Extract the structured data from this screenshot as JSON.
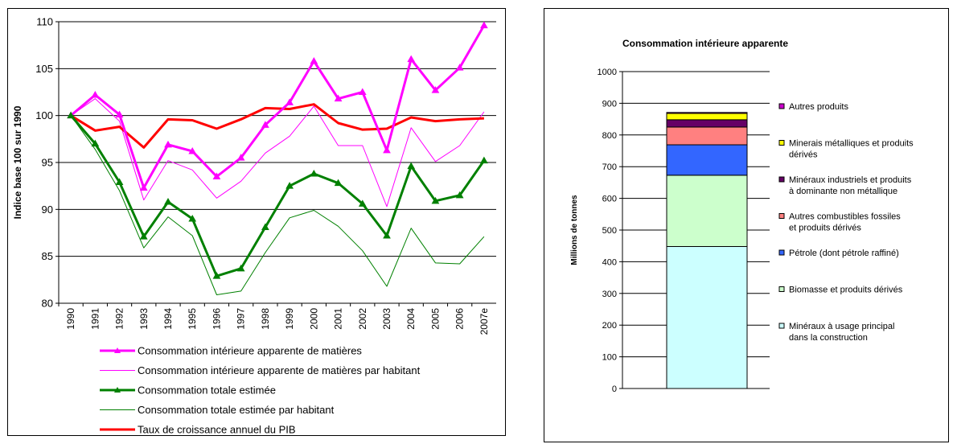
{
  "chart_data": [
    {
      "type": "line",
      "title": "",
      "xlabel": "",
      "ylabel": "Indice base 100 sur 1990",
      "ylim": [
        80,
        110
      ],
      "yticks": [
        80,
        85,
        90,
        95,
        100,
        105,
        110
      ],
      "grid": true,
      "legend_position": "bottom",
      "categories": [
        "1990",
        "1991",
        "1992",
        "1993",
        "1994",
        "1995",
        "1996",
        "1997",
        "1998",
        "1999",
        "2000",
        "2001",
        "2002",
        "2003",
        "2004",
        "2005",
        "2006",
        "2007e"
      ],
      "series": [
        {
          "name": "Consommation intérieure apparente de matières",
          "color": "#ff00ff",
          "marker": "triangle",
          "width": "thick",
          "values": [
            100,
            102.2,
            100.1,
            92.3,
            96.9,
            96.2,
            93.5,
            95.5,
            99.0,
            101.4,
            105.8,
            101.8,
            102.5,
            96.3,
            106.0,
            102.7,
            105.1,
            109.6
          ]
        },
        {
          "name": "Consommation intérieure apparente de matières par habitant",
          "color": "#ff00ff",
          "marker": "none",
          "width": "thin",
          "values": [
            100,
            101.8,
            99.4,
            91.0,
            95.2,
            94.2,
            91.2,
            93.0,
            96.0,
            97.8,
            101.0,
            96.8,
            96.8,
            90.3,
            98.7,
            95.1,
            96.8,
            100.4
          ]
        },
        {
          "name": "Consommation totale estimée",
          "color": "#008000",
          "marker": "triangle",
          "width": "thick",
          "values": [
            100,
            97.0,
            92.9,
            87.1,
            90.8,
            89.0,
            82.9,
            83.7,
            88.1,
            92.5,
            93.8,
            92.8,
            90.6,
            87.2,
            94.6,
            90.9,
            91.5,
            95.2
          ]
        },
        {
          "name": "Consommation totale estimée par habitant",
          "color": "#008000",
          "marker": "none",
          "width": "thin",
          "values": [
            100,
            96.4,
            92.0,
            85.9,
            89.2,
            87.2,
            80.9,
            81.3,
            85.4,
            89.1,
            89.9,
            88.2,
            85.6,
            81.8,
            88.0,
            84.3,
            84.2,
            87.1
          ]
        },
        {
          "name": "Taux de croissance annuel du PIB",
          "color": "#ff0000",
          "marker": "none",
          "width": "thick",
          "values": [
            100,
            98.4,
            98.8,
            96.6,
            99.6,
            99.5,
            98.6,
            99.6,
            100.8,
            100.7,
            101.2,
            99.2,
            98.5,
            98.6,
            99.8,
            99.4,
            99.6,
            99.7
          ]
        }
      ]
    },
    {
      "type": "bar",
      "stacked": true,
      "title": "Consommation intérieure apparente",
      "xlabel": "",
      "ylabel": "Millions de tonnes",
      "ylim": [
        0,
        1000
      ],
      "yticks": [
        0,
        100,
        200,
        300,
        400,
        500,
        600,
        700,
        800,
        900,
        1000
      ],
      "grid": true,
      "legend_position": "right",
      "series": [
        {
          "name": "Minéraux à usage principal dans la construction",
          "label_lines": [
            "Minéraux à usage principal",
            "dans la construction"
          ],
          "color": "#ccffff",
          "value": 448
        },
        {
          "name": "Biomasse et produits dérivés",
          "label_lines": [
            "Biomasse et produits dérivés"
          ],
          "color": "#ccffcc",
          "value": 225
        },
        {
          "name": "Pétrole (dont pétrole raffiné)",
          "label_lines": [
            "Pétrole (dont pétrole raffiné)"
          ],
          "color": "#3366ff",
          "value": 96
        },
        {
          "name": "Autres combustibles fossiles et produits dérivés",
          "label_lines": [
            "Autres combustibles fossiles",
            "et produits dérivés"
          ],
          "color": "#ff8080",
          "value": 56
        },
        {
          "name": "Minéraux industriels et produits à dominante non métallique",
          "label_lines": [
            "Minéraux industriels et produits",
            "à dominante non métallique"
          ],
          "color": "#660066",
          "value": 23
        },
        {
          "name": "Minerais métalliques et produits dérivés",
          "label_lines": [
            "Minerais métalliques et produits",
            "dérivés"
          ],
          "color": "#ffff00",
          "value": 20
        },
        {
          "name": "Autres produits",
          "label_lines": [
            "Autres produits"
          ],
          "color": "#cc00cc",
          "value": 3
        }
      ]
    }
  ]
}
